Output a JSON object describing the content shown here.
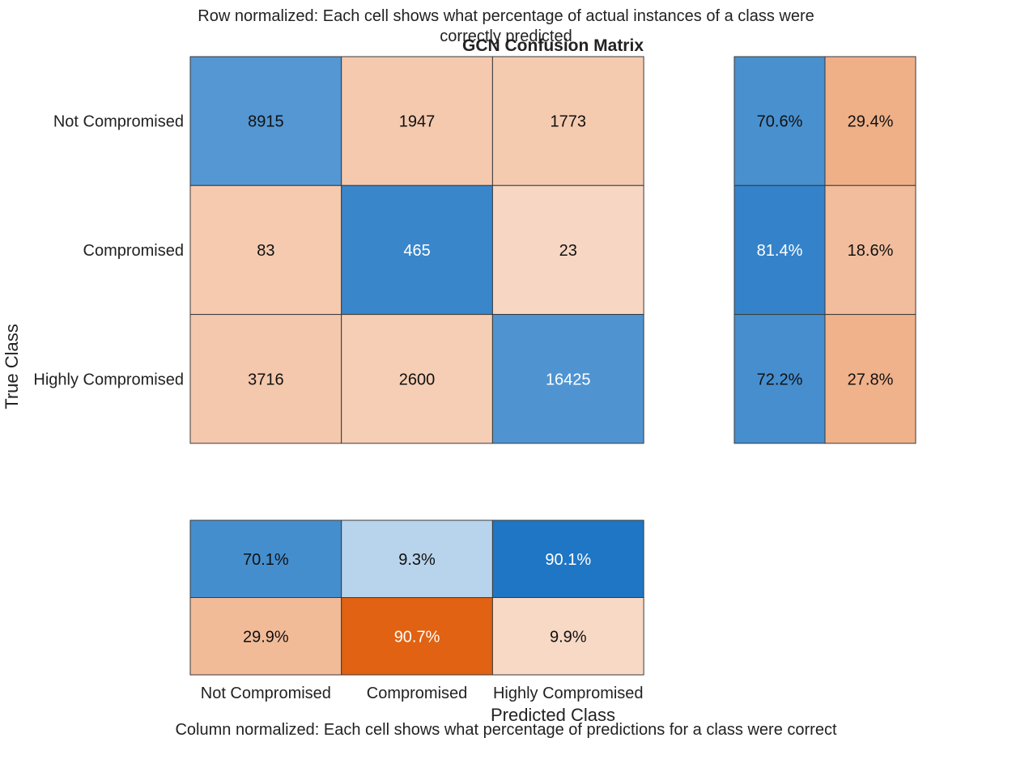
{
  "chart_data": {
    "type": "heatmap",
    "title": "GCN Confusion Matrix",
    "row_summary_title_lines": [
      "Row normalized: Each cell shows what percentage of actual instances of a class were",
      "correctly predicted"
    ],
    "column_summary_title": "Column normalized: Each cell shows what percentage of predictions for a class were correct",
    "xlabel": "Predicted Class",
    "ylabel": "True Class",
    "classes": [
      "Not Compromised",
      "Compromised",
      "Highly Compromised"
    ],
    "matrix": [
      [
        8915,
        1947,
        1773
      ],
      [
        83,
        465,
        23
      ],
      [
        3716,
        2600,
        16425
      ]
    ],
    "row_summary": [
      [
        "70.6%",
        "29.4%"
      ],
      [
        "81.4%",
        "18.6%"
      ],
      [
        "72.2%",
        "27.8%"
      ]
    ],
    "column_summary": [
      [
        "70.1%",
        "9.3%",
        "90.1%"
      ],
      [
        "29.9%",
        "90.7%",
        "9.9%"
      ]
    ],
    "colors": {
      "blue": "#0c6bbf",
      "orange": "#e06212",
      "border": "#3a3a3a"
    }
  }
}
